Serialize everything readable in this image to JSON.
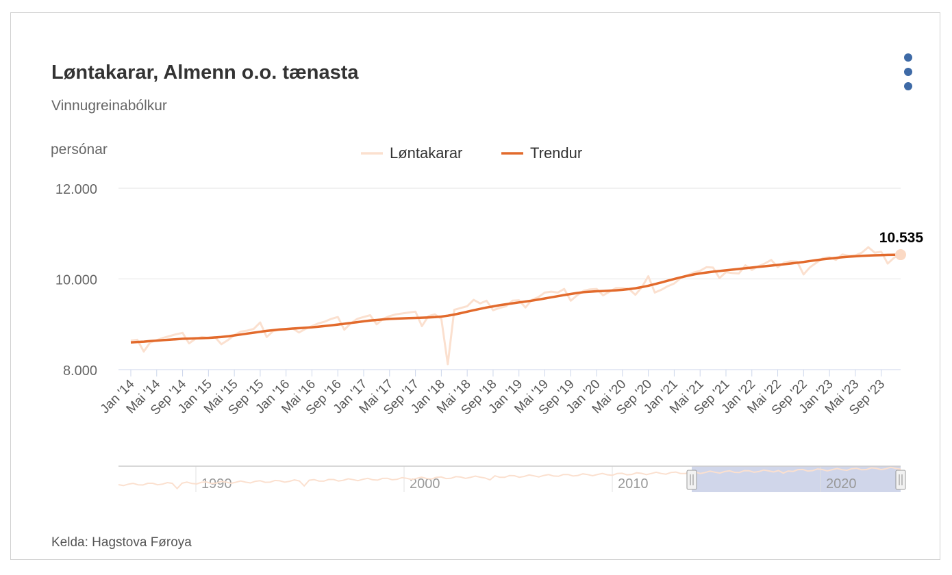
{
  "header": {
    "title": "Løntakarar, Almenn o.o. tænasta",
    "subtitle": "Vinnugreinabólkur"
  },
  "footer": {
    "source": "Kelda: Hagstova Føroya"
  },
  "menu": {
    "icon": "more-vertical-icon"
  },
  "colors": {
    "trend": "#e26a2c",
    "raw": "#fbe0cf",
    "grid": "#e3e3e3",
    "navigator_mask": "#c8cfe6",
    "menu": "#3e6aa6"
  },
  "chart_data": {
    "type": "line",
    "ylabel": "persónar",
    "ylim": [
      8000,
      12000
    ],
    "yticks": [
      "8.000",
      "10.000",
      "12.000"
    ],
    "yticks_values": [
      8000,
      10000,
      12000
    ],
    "x_tick_labels": [
      "Jan '14",
      "Mai '14",
      "Sep '14",
      "Jan '15",
      "Mai '15",
      "Sep '15",
      "Jan '16",
      "Mai '16",
      "Sep '16",
      "Jan '17",
      "Mai '17",
      "Sep '17",
      "Jan '18",
      "Mai '18",
      "Sep '18",
      "Jan '19",
      "Mai '19",
      "Sep '19",
      "Jan '20",
      "Mai '20",
      "Sep '20",
      "Jan '21",
      "Mai '21",
      "Sep '21",
      "Jan '22",
      "Mai '22",
      "Sep '22",
      "Jan '23",
      "Mai '23",
      "Sep '23"
    ],
    "legend": [
      "Løntakarar",
      "Trendur"
    ],
    "legend_position": "top-center",
    "last_value_label": "10.535",
    "series": [
      {
        "name": "Løntakarar",
        "color": "#fbe0cf",
        "values": [
          8640,
          8660,
          8400,
          8600,
          8650,
          8700,
          8740,
          8780,
          8810,
          8580,
          8680,
          8720,
          8700,
          8720,
          8560,
          8650,
          8760,
          8840,
          8860,
          8900,
          9040,
          8720,
          8850,
          8880,
          8880,
          8910,
          8820,
          8900,
          8960,
          9020,
          9060,
          9120,
          9160,
          8880,
          9020,
          9120,
          9160,
          9200,
          9000,
          9120,
          9180,
          9220,
          9240,
          9260,
          9280,
          8960,
          9180,
          9220,
          9120,
          8120,
          9320,
          9360,
          9400,
          9540,
          9460,
          9520,
          9310,
          9360,
          9400,
          9520,
          9530,
          9370,
          9540,
          9600,
          9700,
          9720,
          9700,
          9780,
          9520,
          9640,
          9740,
          9770,
          9780,
          9640,
          9720,
          9800,
          9800,
          9780,
          9650,
          9820,
          10060,
          9700,
          9760,
          9840,
          9900,
          10020,
          10080,
          10140,
          10180,
          10260,
          10250,
          10020,
          10150,
          10130,
          10120,
          10300,
          10200,
          10280,
          10340,
          10420,
          10260,
          10360,
          10390,
          10380,
          10100,
          10260,
          10360,
          10460,
          10480,
          10420,
          10540,
          10510,
          10520,
          10580,
          10700,
          10580,
          10600,
          10340,
          10470,
          10535
        ],
        "smoothed": [
          8600,
          8610,
          8618,
          8630,
          8640,
          8650,
          8660,
          8670,
          8680,
          8685,
          8690,
          8695,
          8700,
          8710,
          8720,
          8735,
          8755,
          8775,
          8795,
          8815,
          8835,
          8855,
          8870,
          8885,
          8895,
          8905,
          8915,
          8925,
          8935,
          8948,
          8962,
          8978,
          8995,
          9012,
          9030,
          9048,
          9065,
          9082,
          9095,
          9108,
          9118,
          9124,
          9130,
          9135,
          9140,
          9145,
          9150,
          9158,
          9170,
          9190,
          9215,
          9245,
          9278,
          9310,
          9340,
          9370,
          9395,
          9420,
          9442,
          9462,
          9482,
          9502,
          9522,
          9545,
          9570,
          9595,
          9620,
          9645,
          9668,
          9690,
          9708,
          9720,
          9728,
          9735,
          9742,
          9750,
          9760,
          9775,
          9795,
          9820,
          9850,
          9885,
          9922,
          9960,
          9998,
          10035,
          10068,
          10098,
          10122,
          10142,
          10160,
          10175,
          10190,
          10205,
          10220,
          10235,
          10250,
          10265,
          10280,
          10295,
          10310,
          10325,
          10340,
          10357,
          10375,
          10395,
          10415,
          10433,
          10450,
          10465,
          10478,
          10490,
          10500,
          10508,
          10515,
          10521,
          10526,
          10530,
          10533,
          10535
        ]
      },
      {
        "name": "Trendur",
        "color": "#e26a2c"
      }
    ],
    "navigator": {
      "labels": [
        "1990",
        "2000",
        "2010",
        "2020"
      ],
      "range_start": "Jan '14",
      "range_end": "Des '23"
    }
  }
}
